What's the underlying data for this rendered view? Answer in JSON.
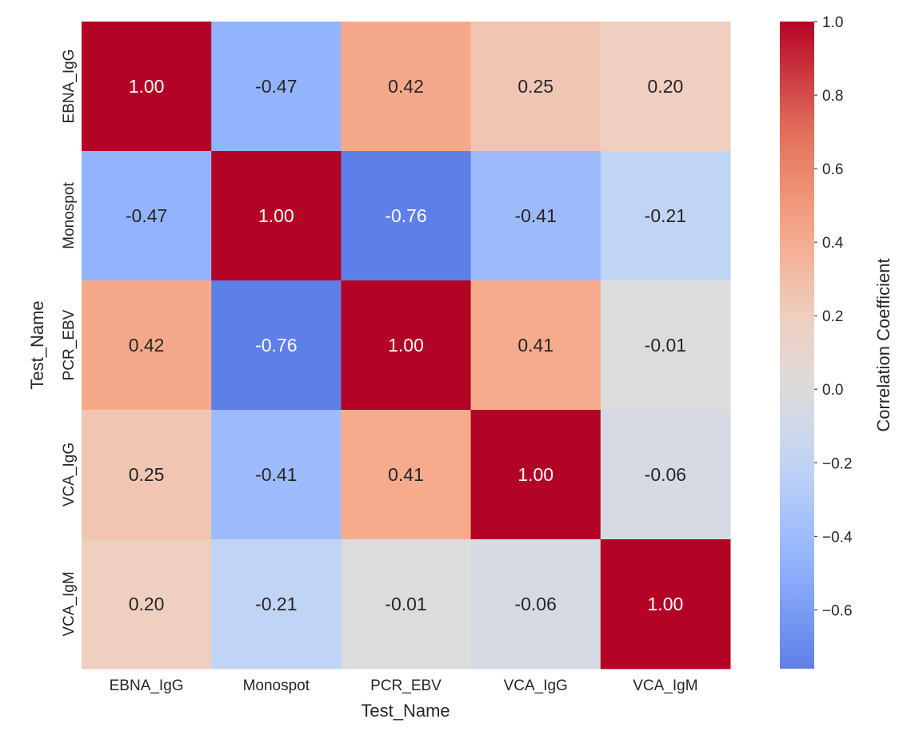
{
  "chart_data": {
    "type": "heatmap",
    "title": "",
    "xlabel": "Test_Name",
    "ylabel": "Test_Name",
    "x_categories": [
      "EBNA_IgG",
      "Monospot",
      "PCR_EBV",
      "VCA_IgG",
      "VCA_IgM"
    ],
    "y_categories": [
      "EBNA_IgG",
      "Monospot",
      "PCR_EBV",
      "VCA_IgG",
      "VCA_IgM"
    ],
    "values": [
      [
        1.0,
        -0.47,
        0.42,
        0.25,
        0.2
      ],
      [
        -0.47,
        1.0,
        -0.76,
        -0.41,
        -0.21
      ],
      [
        0.42,
        -0.76,
        1.0,
        0.41,
        -0.01
      ],
      [
        0.25,
        -0.41,
        0.41,
        1.0,
        -0.06
      ],
      [
        0.2,
        -0.21,
        -0.01,
        -0.06,
        1.0
      ]
    ],
    "annotation_format": "0.00",
    "colormap": "coolwarm",
    "color_center": 0,
    "colorbar": {
      "label": "Correlation Coefficient",
      "range": [
        -0.76,
        1.0
      ],
      "ticks": [
        "1.0",
        "0.8",
        "0.6",
        "0.4",
        "0.2",
        "0.0",
        "−0.2",
        "−0.4",
        "−0.6"
      ],
      "tick_values": [
        1.0,
        0.8,
        0.6,
        0.4,
        0.2,
        0.0,
        -0.2,
        -0.4,
        -0.6
      ]
    },
    "colors": {
      "max": "#b40426",
      "center": "#dddcdc",
      "min": "#3b4cc0"
    }
  }
}
